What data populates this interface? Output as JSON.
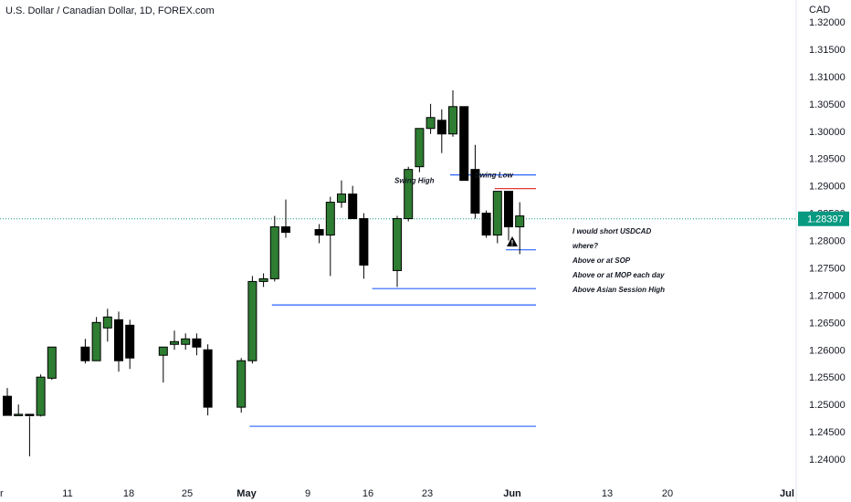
{
  "chart_data": {
    "type": "candlestick",
    "title": "U.S. Dollar / Canadian Dollar, 1D, FOREX.com",
    "currency": "CAD",
    "ylim": [
      1.2365,
      1.3225
    ],
    "y_ticks": [
      "1.32000",
      "1.31500",
      "1.31000",
      "1.30500",
      "1.30000",
      "1.29500",
      "1.29000",
      "1.28500",
      "1.28000",
      "1.27500",
      "1.27000",
      "1.26500",
      "1.26000",
      "1.25500",
      "1.25000",
      "1.24500",
      "1.24000"
    ],
    "x_ticks": [
      "Apr",
      "11",
      "18",
      "25",
      "May",
      "9",
      "16",
      "23",
      "Jun",
      "13",
      "20",
      "Jul"
    ],
    "current_price": "1.28397",
    "candles": [
      {
        "day": 0,
        "open": 1.2515,
        "high": 1.253,
        "low": 1.2485,
        "close": 1.248
      },
      {
        "day": 1,
        "open": 1.248,
        "high": 1.25,
        "low": 1.248,
        "close": 1.2482
      },
      {
        "day": 2,
        "open": 1.2482,
        "high": 1.2478,
        "low": 1.2405,
        "close": 1.2481
      },
      {
        "day": 3,
        "open": 1.248,
        "high": 1.2555,
        "low": 1.2478,
        "close": 1.255
      },
      {
        "day": 4,
        "open": 1.2548,
        "high": 1.2605,
        "low": 1.2545,
        "close": 1.2605
      },
      {
        "day": 7,
        "open": 1.2605,
        "high": 1.262,
        "low": 1.2575,
        "close": 1.258
      },
      {
        "day": 8,
        "open": 1.258,
        "high": 1.266,
        "low": 1.258,
        "close": 1.265
      },
      {
        "day": 9,
        "open": 1.264,
        "high": 1.2675,
        "low": 1.2615,
        "close": 1.266
      },
      {
        "day": 10,
        "open": 1.2655,
        "high": 1.267,
        "low": 1.256,
        "close": 1.258
      },
      {
        "day": 11,
        "open": 1.2645,
        "high": 1.2655,
        "low": 1.2565,
        "close": 1.2585
      },
      {
        "day": 14,
        "open": 1.259,
        "high": 1.2605,
        "low": 1.254,
        "close": 1.2605
      },
      {
        "day": 15,
        "open": 1.261,
        "high": 1.2635,
        "low": 1.26,
        "close": 1.2615
      },
      {
        "day": 16,
        "open": 1.261,
        "high": 1.263,
        "low": 1.26,
        "close": 1.262
      },
      {
        "day": 17,
        "open": 1.262,
        "high": 1.263,
        "low": 1.259,
        "close": 1.2605
      },
      {
        "day": 18,
        "open": 1.26,
        "high": 1.261,
        "low": 1.248,
        "close": 1.2495
      },
      {
        "day": 21,
        "open": 1.2495,
        "high": 1.2585,
        "low": 1.2485,
        "close": 1.258
      },
      {
        "day": 22,
        "open": 1.258,
        "high": 1.2735,
        "low": 1.2575,
        "close": 1.2725
      },
      {
        "day": 23,
        "open": 1.2725,
        "high": 1.274,
        "low": 1.2715,
        "close": 1.273
      },
      {
        "day": 24,
        "open": 1.273,
        "high": 1.2845,
        "low": 1.2725,
        "close": 1.2825
      },
      {
        "day": 25,
        "open": 1.2825,
        "high": 1.2875,
        "low": 1.2805,
        "close": 1.2815
      },
      {
        "day": 28,
        "open": 1.282,
        "high": 1.283,
        "low": 1.2795,
        "close": 1.281
      },
      {
        "day": 29,
        "open": 1.281,
        "high": 1.288,
        "low": 1.2735,
        "close": 1.287
      },
      {
        "day": 30,
        "open": 1.287,
        "high": 1.291,
        "low": 1.286,
        "close": 1.2885
      },
      {
        "day": 31,
        "open": 1.2885,
        "high": 1.29,
        "low": 1.284,
        "close": 1.284
      },
      {
        "day": 32,
        "open": 1.284,
        "high": 1.285,
        "low": 1.273,
        "close": 1.2755
      },
      {
        "day": 35,
        "open": 1.2745,
        "high": 1.2845,
        "low": 1.2715,
        "close": 1.284
      },
      {
        "day": 36,
        "open": 1.284,
        "high": 1.2935,
        "low": 1.2835,
        "close": 1.293
      },
      {
        "day": 37,
        "open": 1.2935,
        "high": 1.3005,
        "low": 1.2925,
        "close": 1.3005
      },
      {
        "day": 38,
        "open": 1.3005,
        "high": 1.305,
        "low": 1.2995,
        "close": 1.3025
      },
      {
        "day": 39,
        "open": 1.302,
        "high": 1.304,
        "low": 1.296,
        "close": 1.2995
      },
      {
        "day": 40,
        "open": 1.2995,
        "high": 1.3075,
        "low": 1.299,
        "close": 1.3045
      },
      {
        "day": 41,
        "open": 1.3045,
        "high": 1.3045,
        "low": 1.291,
        "close": 1.291
      },
      {
        "day": 42,
        "open": 1.293,
        "high": 1.2975,
        "low": 1.284,
        "close": 1.285
      },
      {
        "day": 43,
        "open": 1.285,
        "high": 1.2855,
        "low": 1.2805,
        "close": 1.281
      },
      {
        "day": 44,
        "open": 1.281,
        "high": 1.289,
        "low": 1.2795,
        "close": 1.289
      },
      {
        "day": 45,
        "open": 1.289,
        "high": 1.289,
        "low": 1.28,
        "close": 1.2825
      },
      {
        "day": 46,
        "open": 1.2825,
        "high": 1.287,
        "low": 1.2775,
        "close": 1.2845
      }
    ],
    "annotations": {
      "swing_high_label": "Swing High",
      "swing_low_label": "Swing Low",
      "notes": [
        "I would short USDCAD",
        "where?",
        "Above or at SOP",
        "Above or at MOP each day",
        "Above Asian Session High"
      ],
      "levels": [
        {
          "price": 1.292,
          "start_day": 40,
          "color": "#2962ff"
        },
        {
          "price": 1.2895,
          "start_day": 44,
          "color": "#e53935"
        },
        {
          "price": 1.2783,
          "start_day": 45,
          "color": "#2962ff"
        },
        {
          "price": 1.2712,
          "start_day": 33,
          "color": "#2962ff"
        },
        {
          "price": 1.2682,
          "start_day": 24,
          "color": "#2962ff"
        },
        {
          "price": 1.246,
          "start_day": 22,
          "color": "#2962ff"
        }
      ]
    },
    "colors": {
      "up": "#2e7d32",
      "down": "#000000",
      "price_tag": "#089981",
      "level": "#2962ff",
      "swing_low": "#e53935"
    }
  }
}
